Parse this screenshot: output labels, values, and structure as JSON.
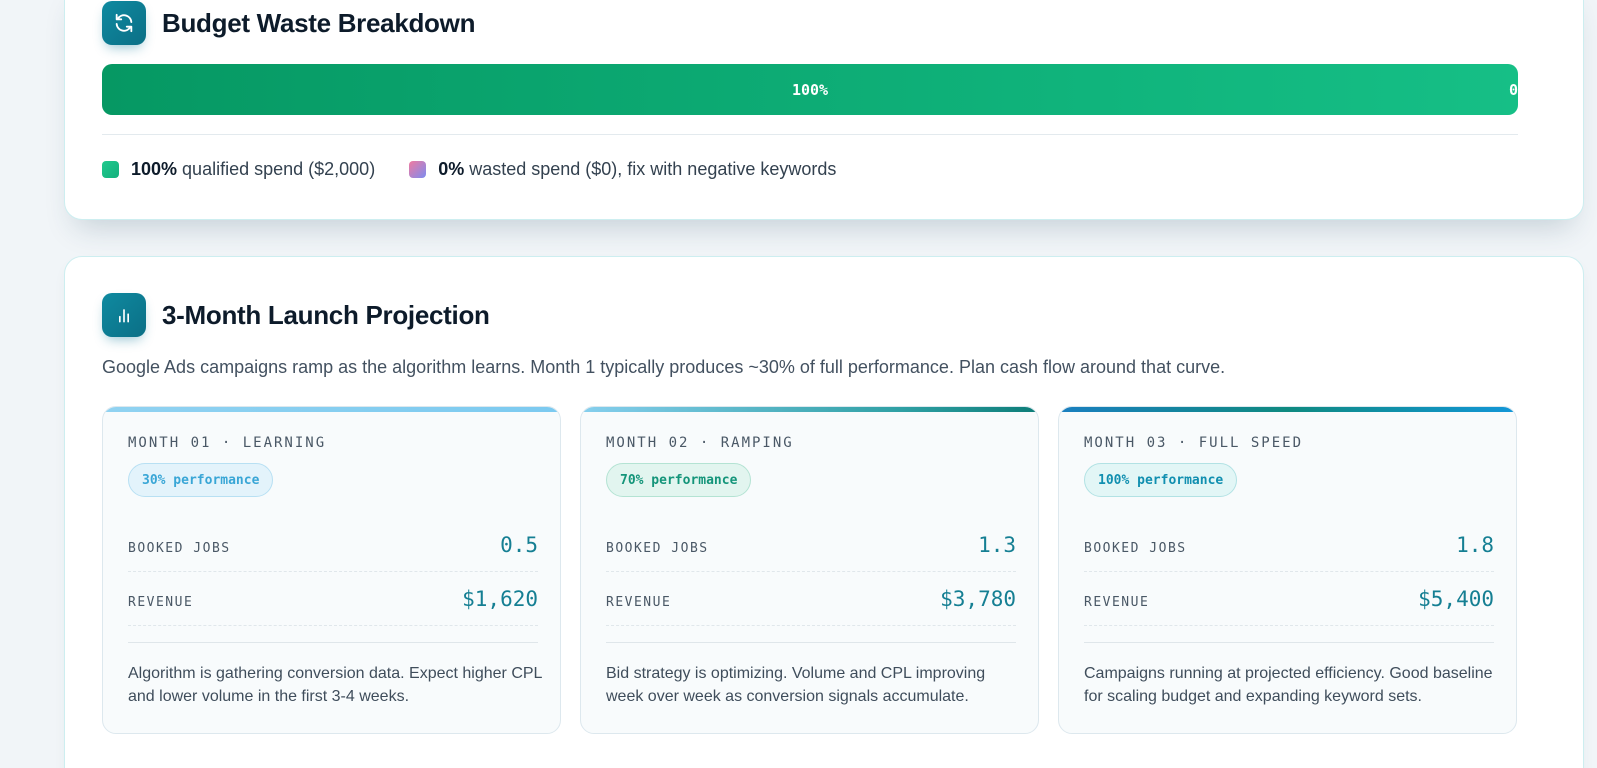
{
  "waste": {
    "title": "Budget Waste Breakdown",
    "icon": "refresh-icon",
    "bar": {
      "qualified_fraction": 1.0,
      "label": "100%",
      "wasted_label": "0"
    },
    "legend": {
      "qualified_pct": "100%",
      "qualified_text": " qualified spend ($2,000)",
      "wasted_pct": "0%",
      "wasted_text": " wasted spend ($0), fix with negative keywords"
    },
    "colors": {
      "qualified": "#10b47c",
      "accent": "#0f8aa0"
    }
  },
  "projection": {
    "title": "3-Month Launch Projection",
    "icon": "bar-chart-icon",
    "subtitle": "Google Ads campaigns ramp as the algorithm learns. Month 1 typically produces ~30% of full performance. Plan cash flow around that curve.",
    "months": [
      {
        "label": "MONTH 01 · LEARNING",
        "performance": "30% performance",
        "jobs_label": "BOOKED JOBS",
        "jobs": "0.5",
        "revenue_label": "REVENUE",
        "revenue": "$1,620",
        "description": "Algorithm is gathering conversion data. Expect higher CPL and lower volume in the first 3-4 weeks."
      },
      {
        "label": "MONTH 02 · RAMPING",
        "performance": "70% performance",
        "jobs_label": "BOOKED JOBS",
        "jobs": "1.3",
        "revenue_label": "REVENUE",
        "revenue": "$3,780",
        "description": "Bid strategy is optimizing. Volume and CPL improving week over week as conversion signals accumulate."
      },
      {
        "label": "MONTH 03 · FULL SPEED",
        "performance": "100% performance",
        "jobs_label": "BOOKED JOBS",
        "jobs": "1.8",
        "revenue_label": "REVENUE",
        "revenue": "$5,400",
        "description": "Campaigns running at projected efficiency. Good baseline for scaling budget and expanding keyword sets."
      }
    ]
  }
}
